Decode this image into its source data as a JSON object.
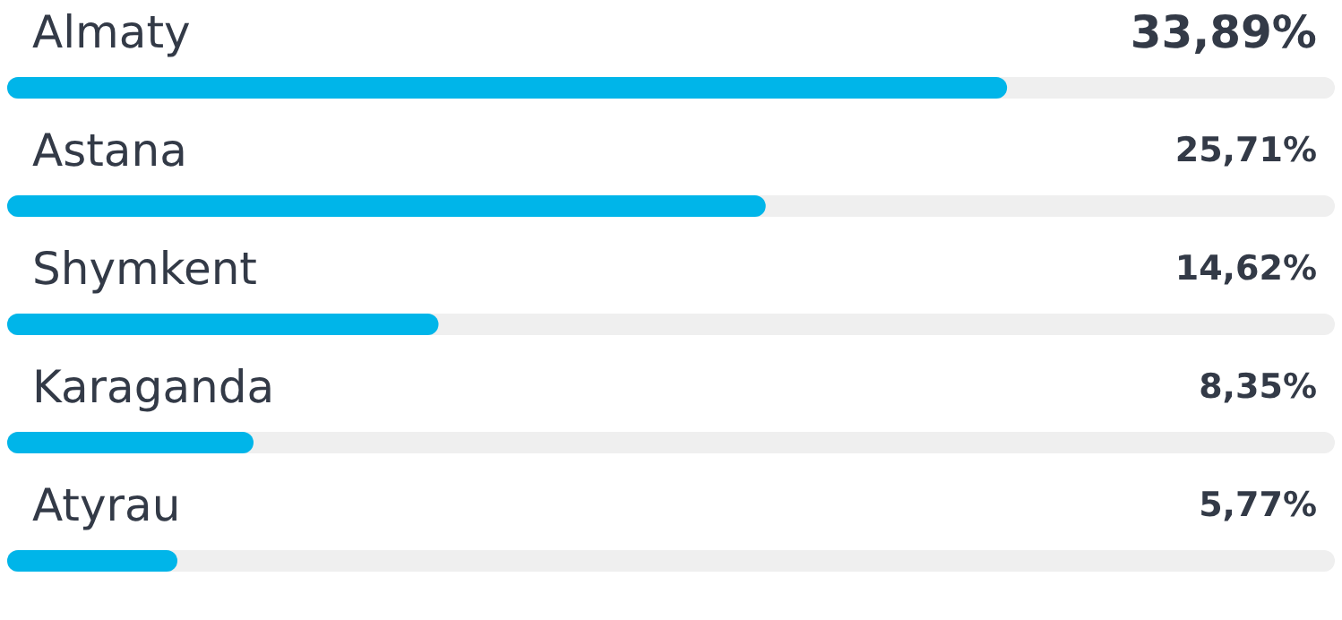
{
  "chart_data": {
    "type": "bar",
    "orientation": "horizontal",
    "categories": [
      "Almaty",
      "Astana",
      "Shymkent",
      "Karaganda",
      "Atyrau"
    ],
    "values": [
      33.89,
      25.71,
      14.62,
      8.35,
      5.77
    ],
    "value_labels": [
      "33,89%",
      "25,71%",
      "14,62%",
      "8,35%",
      "5,77%"
    ],
    "color": "#00b5e9",
    "xlim": [
      0,
      45
    ]
  }
}
